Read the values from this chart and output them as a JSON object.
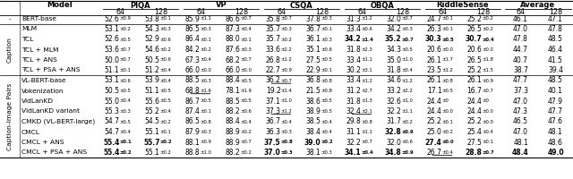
{
  "col_groups": [
    "PIQA",
    "VP",
    "CSQA",
    "OBQA",
    "RiddleSense",
    "Average"
  ],
  "sub_cols": [
    "64",
    "128"
  ],
  "sections": [
    {
      "label": "-",
      "rotate_label": false,
      "rows": [
        {
          "model": "BERT-base",
          "bold": [],
          "underline": [],
          "vals": [
            [
              "52.6",
              "0.9"
            ],
            [
              "53.8",
              "0.1"
            ],
            [
              "85.9",
              "1.1"
            ],
            [
              "86.6",
              "0.7"
            ],
            [
              "35.8",
              "0.7"
            ],
            [
              "37.8",
              "0.3"
            ],
            [
              "31.3",
              "1.2"
            ],
            [
              "32.0",
              "0.7"
            ],
            [
              "24.7",
              "0.1"
            ],
            [
              "25.2",
              "0.2"
            ],
            [
              "46.1",
              ""
            ],
            [
              "47.1",
              ""
            ]
          ]
        }
      ]
    },
    {
      "label": "Caption",
      "rotate_label": true,
      "rows": [
        {
          "model": "MLM",
          "bold": [],
          "underline": [],
          "vals": [
            [
              "53.1",
              "0.2"
            ],
            [
              "54.3",
              "0.3"
            ],
            [
              "86.5",
              "0.3"
            ],
            [
              "87.3",
              "0.4"
            ],
            [
              "35.7",
              "0.3"
            ],
            [
              "36.7",
              "0.1"
            ],
            [
              "33.4",
              "0.6"
            ],
            [
              "34.2",
              "0.3"
            ],
            [
              "26.3",
              "0.1"
            ],
            [
              "26.5",
              "0.2"
            ],
            [
              "47.0",
              ""
            ],
            [
              "47.8",
              ""
            ]
          ]
        },
        {
          "model": "TCL",
          "bold": [
            6,
            7,
            8,
            9
          ],
          "underline": [],
          "vals": [
            [
              "52.6",
              "0.5"
            ],
            [
              "52.9",
              "0.6"
            ],
            [
              "86.4",
              "0.1"
            ],
            [
              "88.0",
              "0.1"
            ],
            [
              "35.7",
              "0.2"
            ],
            [
              "36.1",
              "0.3"
            ],
            [
              "34.2",
              "1.4"
            ],
            [
              "35.2",
              "0.7"
            ],
            [
              "30.3",
              "0.5"
            ],
            [
              "30.7",
              "0.4"
            ],
            [
              "47.8",
              ""
            ],
            [
              "48.5",
              ""
            ]
          ]
        },
        {
          "model": "TCL + MLM",
          "bold": [],
          "underline": [],
          "vals": [
            [
              "53.6",
              "0.7"
            ],
            [
              "54.6",
              "0.2"
            ],
            [
              "84.2",
              "0.2"
            ],
            [
              "87.6",
              "0.3"
            ],
            [
              "33.6",
              "2.2"
            ],
            [
              "35.1",
              "0.6"
            ],
            [
              "31.8",
              "2.3"
            ],
            [
              "34.3",
              "0.5"
            ],
            [
              "20.6",
              "0.0"
            ],
            [
              "20.6",
              "0.0"
            ],
            [
              "44.7",
              ""
            ],
            [
              "46.4",
              ""
            ]
          ]
        },
        {
          "model": "TCL + ANS",
          "bold": [],
          "underline": [],
          "vals": [
            [
              "50.0",
              "0.7"
            ],
            [
              "50.5",
              "0.6"
            ],
            [
              "67.3",
              "0.4"
            ],
            [
              "68.2",
              "0.7"
            ],
            [
              "26.8",
              "1.2"
            ],
            [
              "27.5",
              "0.5"
            ],
            [
              "33.4",
              "1.1"
            ],
            [
              "35.0",
              "1.0"
            ],
            [
              "26.1",
              "1.7"
            ],
            [
              "26.5",
              "1.8"
            ],
            [
              "40.7",
              ""
            ],
            [
              "41.5",
              ""
            ]
          ]
        },
        {
          "model": "TCL + PSA + ANS",
          "bold": [],
          "underline": [],
          "vals": [
            [
              "51.1",
              "0.1"
            ],
            [
              "51.2",
              "0.4"
            ],
            [
              "66.0",
              "0.0"
            ],
            [
              "66.0",
              "0.0"
            ],
            [
              "22.7",
              "0.9"
            ],
            [
              "22.9",
              "0.1"
            ],
            [
              "30.2",
              "3.1"
            ],
            [
              "31.8",
              "0.4"
            ],
            [
              "23.5",
              "1.2"
            ],
            [
              "25.2",
              "1.5"
            ],
            [
              "38.7",
              ""
            ],
            [
              "39.4",
              ""
            ]
          ]
        }
      ]
    },
    {
      "label": "Caption-Image Pairs",
      "rotate_label": true,
      "rows": [
        {
          "model": "VL-BERT-base",
          "bold": [],
          "underline": [
            4
          ],
          "vals": [
            [
              "53.1",
              "0.6"
            ],
            [
              "53.9",
              "0.4"
            ],
            [
              "88.5",
              "0.3"
            ],
            [
              "88.4",
              "0.5"
            ],
            [
              "36.2",
              "0.7"
            ],
            [
              "36.8",
              "0.8"
            ],
            [
              "33.4",
              "1.2"
            ],
            [
              "34.6",
              "1.2"
            ],
            [
              "26.1",
              "0.8"
            ],
            [
              "26.1",
              "0.9"
            ],
            [
              "47.7",
              ""
            ],
            [
              "48.5",
              ""
            ]
          ]
        },
        {
          "model": "Vokenization",
          "bold": [],
          "underline": [
            2
          ],
          "vals": [
            [
              "50.5",
              "0.5"
            ],
            [
              "51.1",
              "0.5"
            ],
            [
              "68.8",
              "1.6"
            ],
            [
              "78.1",
              "1.9"
            ],
            [
              "19.2",
              "1.4"
            ],
            [
              "21.5",
              "0.8"
            ],
            [
              "31.2",
              "2.7"
            ],
            [
              "33.2",
              "2.2"
            ],
            [
              "17.1",
              "0.5"
            ],
            [
              "16.7",
              "0.7"
            ],
            [
              "37.3",
              ""
            ],
            [
              "40.1",
              ""
            ]
          ]
        },
        {
          "model": "VidLanKD",
          "bold": [],
          "underline": [],
          "vals": [
            [
              "55.0",
              "0.4"
            ],
            [
              "55.6",
              "0.5"
            ],
            [
              "86.7",
              "0.5"
            ],
            [
              "88.5",
              "0.5"
            ],
            [
              "37.1",
              "1.0"
            ],
            [
              "38.6",
              "0.5"
            ],
            [
              "31.8",
              "1.3"
            ],
            [
              "32.6",
              "1.0"
            ],
            [
              "24.4",
              "0"
            ],
            [
              "24.4",
              "0"
            ],
            [
              "47.0",
              ""
            ],
            [
              "47.9",
              ""
            ]
          ]
        },
        {
          "model": "VidLanKD variant",
          "bold": [],
          "underline": [
            4,
            6
          ],
          "vals": [
            [
              "55.3",
              "0.3"
            ],
            [
              "55.2",
              "0.4"
            ],
            [
              "87.4",
              "0.1"
            ],
            [
              "88.2",
              "0.6"
            ],
            [
              "37.3",
              "1.2"
            ],
            [
              "38.9",
              "0.5"
            ],
            [
              "32.4",
              "2.1"
            ],
            [
              "32.2",
              "1.1"
            ],
            [
              "24.4",
              "0.0"
            ],
            [
              "24.4",
              "0.0"
            ],
            [
              "47.3",
              ""
            ],
            [
              "47.7",
              ""
            ]
          ]
        },
        {
          "model": "CMKD (VL-BERT-large)",
          "bold": [],
          "underline": [],
          "vals": [
            [
              "54.7",
              "0.5"
            ],
            [
              "54.5",
              "0.2"
            ],
            [
              "86.5",
              "0.8"
            ],
            [
              "88.4",
              "0.4"
            ],
            [
              "36.7",
              "0.4"
            ],
            [
              "38.5",
              "0.4"
            ],
            [
              "29.8",
              "0.8"
            ],
            [
              "31.7",
              "0.2"
            ],
            [
              "25.2",
              "0.1"
            ],
            [
              "25.2",
              "0.0"
            ],
            [
              "46.5",
              ""
            ],
            [
              "47.6",
              ""
            ]
          ]
        },
        {
          "model": "CMCL",
          "bold": [
            7
          ],
          "underline": [],
          "vals": [
            [
              "54.7",
              "0.4"
            ],
            [
              "55.1",
              "0.1"
            ],
            [
              "87.9",
              "0.3"
            ],
            [
              "88.9",
              "0.2"
            ],
            [
              "36.3",
              "0.3"
            ],
            [
              "38.4",
              "0.4"
            ],
            [
              "31.1",
              "1.1"
            ],
            [
              "32.8",
              "0.9"
            ],
            [
              "25.0",
              "0.2"
            ],
            [
              "25.4",
              "0.4"
            ],
            [
              "47.0",
              ""
            ],
            [
              "48.1",
              ""
            ]
          ]
        },
        {
          "model": "CMCL + ANS",
          "bold": [
            0,
            1,
            4,
            5,
            8
          ],
          "underline": [],
          "vals": [
            [
              "55.4",
              "0.1"
            ],
            [
              "55.7",
              "0.2"
            ],
            [
              "88.1",
              "0.9"
            ],
            [
              "88.9",
              "0.7"
            ],
            [
              "37.5",
              "0.8"
            ],
            [
              "39.0",
              "0.2"
            ],
            [
              "32.2",
              "0.7"
            ],
            [
              "32.0",
              "0.6"
            ],
            [
              "27.4",
              "0.0"
            ],
            [
              "27.5",
              "0.1"
            ],
            [
              "48.1",
              ""
            ],
            [
              "48.6",
              ""
            ]
          ]
        },
        {
          "model": "CMCL + PSA + ANS",
          "bold": [
            0,
            4,
            6,
            7,
            9,
            10,
            11
          ],
          "underline": [
            8
          ],
          "vals": [
            [
              "55.4",
              "0.2"
            ],
            [
              "55.1",
              "0.2"
            ],
            [
              "88.8",
              "1.0"
            ],
            [
              "88.2",
              "0.2"
            ],
            [
              "37.0",
              "0.3"
            ],
            [
              "38.1",
              "0.3"
            ],
            [
              "34.1",
              "0.4"
            ],
            [
              "34.8",
              "0.9"
            ],
            [
              "26.7",
              "0.4"
            ],
            [
              "28.8",
              "0.7"
            ],
            [
              "48.4",
              ""
            ],
            [
              "49.0",
              ""
            ]
          ]
        }
      ]
    }
  ]
}
